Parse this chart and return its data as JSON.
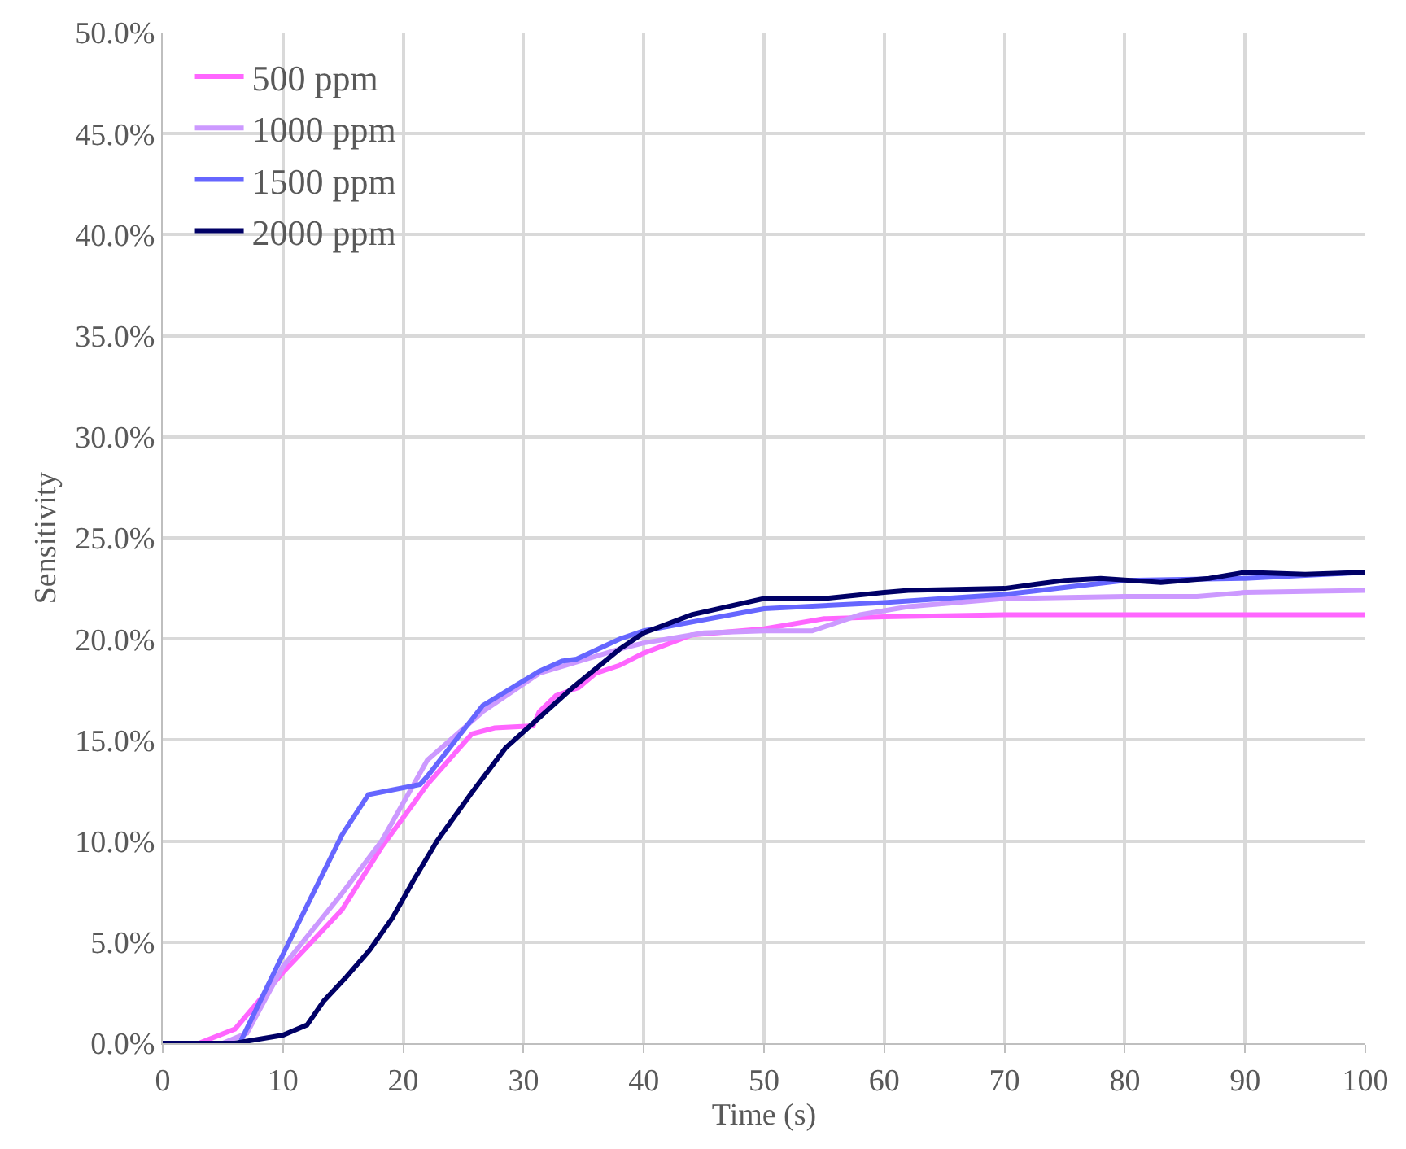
{
  "chart_data": {
    "type": "line",
    "xlabel": "Time (s)",
    "ylabel": "Sensitivity",
    "xlim": [
      0,
      100
    ],
    "xticks": [
      0,
      10,
      20,
      30,
      40,
      50,
      60,
      70,
      80,
      90,
      100
    ],
    "ylim": [
      0,
      50
    ],
    "yticks": [
      {
        "value": 0,
        "label": "0.0%"
      },
      {
        "value": 5,
        "label": "5.0%"
      },
      {
        "value": 10,
        "label": "10.0%"
      },
      {
        "value": 15,
        "label": "15.0%"
      },
      {
        "value": 20,
        "label": "20.0%"
      },
      {
        "value": 25,
        "label": "25.0%"
      },
      {
        "value": 30,
        "label": "30.0%"
      },
      {
        "value": 35,
        "label": "35.0%"
      },
      {
        "value": 40,
        "label": "40.0%"
      },
      {
        "value": 45,
        "label": "45.0%"
      },
      {
        "value": 50,
        "label": "50.0%"
      }
    ],
    "grid": true,
    "legend": "top left",
    "marker": "none",
    "line_style": "solid",
    "series": [
      {
        "name": "500 ppm",
        "color": "#ff66ff",
        "x": [
          0,
          3,
          6,
          10,
          14.9,
          18.2,
          22,
          25.7,
          27.6,
          30.8,
          31.3,
          32.7,
          34.6,
          36,
          38,
          40,
          44,
          50,
          55,
          60,
          70,
          80,
          90,
          100
        ],
        "values": [
          0,
          0,
          0.7,
          3.5,
          6.6,
          9.7,
          12.8,
          15.3,
          15.6,
          15.7,
          16.4,
          17.2,
          17.6,
          18.3,
          18.7,
          19.3,
          20.2,
          20.5,
          21.0,
          21.1,
          21.2,
          21.2,
          21.2,
          21.2
        ]
      },
      {
        "name": "1000 ppm",
        "color": "#cc99ff",
        "x": [
          0,
          5,
          7,
          10,
          14.9,
          18.2,
          22,
          26.6,
          31.3,
          38,
          40,
          45,
          50,
          54,
          58,
          62,
          70,
          80,
          86,
          90,
          100
        ],
        "values": [
          0,
          0,
          0.5,
          3.8,
          7.4,
          10,
          14,
          16.4,
          18.3,
          19.5,
          19.8,
          20.3,
          20.4,
          20.4,
          21.2,
          21.6,
          22.0,
          22.1,
          22.1,
          22.3,
          22.4
        ]
      },
      {
        "name": "1500 ppm",
        "color": "#6666ff",
        "x": [
          0,
          6.4,
          10,
          14.9,
          17.1,
          21.4,
          22,
          26.6,
          31.3,
          33.2,
          34.4,
          38,
          40,
          50,
          60,
          70,
          80,
          90,
          100
        ],
        "values": [
          0,
          0,
          4.4,
          10.3,
          12.3,
          12.8,
          13.2,
          16.7,
          18.4,
          18.9,
          19.0,
          20.0,
          20.4,
          21.5,
          21.8,
          22.2,
          22.9,
          23.0,
          23.3
        ]
      },
      {
        "name": "2000 ppm",
        "color": "#000066",
        "x": [
          0,
          6,
          10,
          12,
          13.4,
          15.3,
          17.2,
          19.1,
          20.9,
          22.8,
          25.7,
          28.5,
          31.3,
          34.1,
          38,
          40,
          44,
          50,
          55,
          60,
          62,
          70,
          75,
          78,
          83,
          87,
          90,
          95,
          100
        ],
        "values": [
          0,
          0,
          0.4,
          0.9,
          2.1,
          3.3,
          4.6,
          6.2,
          8.1,
          10,
          12.4,
          14.6,
          16.1,
          17.6,
          19.5,
          20.3,
          21.2,
          22.0,
          22.0,
          22.3,
          22.4,
          22.5,
          22.9,
          23.0,
          22.8,
          23.0,
          23.3,
          23.2,
          23.3
        ]
      }
    ]
  }
}
